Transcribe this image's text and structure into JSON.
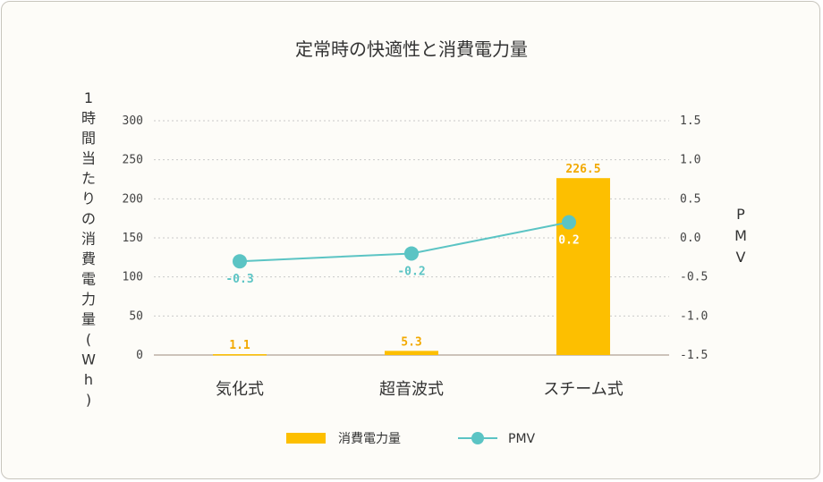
{
  "chart_data": {
    "type": "bar",
    "title": "定常時の快適性と消費電力量",
    "categories": [
      "気化式",
      "超音波式",
      "スチーム式"
    ],
    "series": [
      {
        "name": "消費電力量",
        "type": "bar",
        "axis": "left",
        "values": [
          1.1,
          5.3,
          226.5
        ],
        "labels": [
          "1.1",
          "5.3",
          "226.5"
        ],
        "color": "#fdbf00"
      },
      {
        "name": "PMV",
        "type": "line",
        "axis": "right",
        "values": [
          -0.3,
          -0.2,
          0.2
        ],
        "labels": [
          "-0.3",
          "-0.2",
          "0.2"
        ],
        "color": "#5bc4c4"
      }
    ],
    "ylabel": "1時間当たりの消費電力量(Wh)",
    "y2label": "PMV",
    "ylim": [
      0,
      300
    ],
    "y2lim": [
      -1.5,
      1.5
    ],
    "yticks": [
      "0",
      "50",
      "100",
      "150",
      "200",
      "250",
      "300"
    ],
    "y2ticks": [
      "-1.5",
      "-1.0",
      "-0.5",
      "0.0",
      "0.5",
      "1.0",
      "1.5"
    ],
    "grid": true,
    "legend_position": "bottom"
  }
}
